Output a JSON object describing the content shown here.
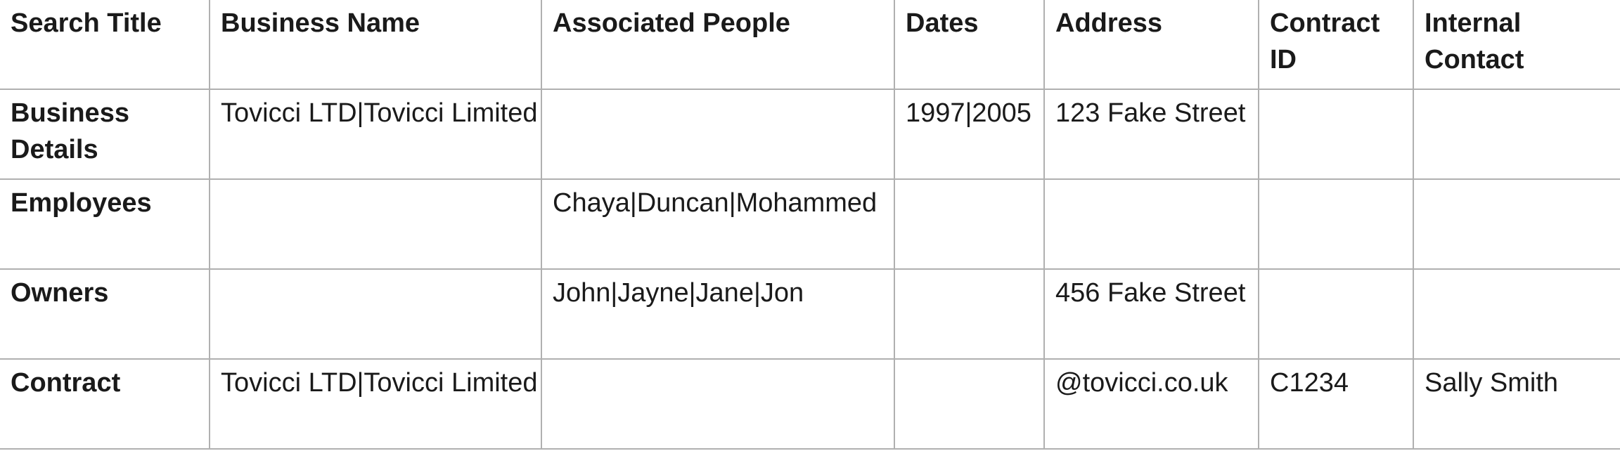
{
  "table": {
    "columns": [
      {
        "key": "search_title",
        "label": "Search Title"
      },
      {
        "key": "business_name",
        "label": "Business Name"
      },
      {
        "key": "associated_people",
        "label": "Associated People"
      },
      {
        "key": "dates",
        "label": "Dates"
      },
      {
        "key": "address",
        "label": "Address"
      },
      {
        "key": "contract_id",
        "label": "Contract ID"
      },
      {
        "key": "internal_contact",
        "label": "Internal Contact"
      }
    ],
    "rows": [
      {
        "search_title": "Business Details",
        "business_name": "Tovicci LTD|Tovicci Limited",
        "associated_people": "",
        "dates": "1997|2005",
        "address": "123 Fake Street",
        "contract_id": "",
        "internal_contact": ""
      },
      {
        "search_title": "Employees",
        "business_name": "",
        "associated_people": "Chaya|Duncan|Mohammed",
        "dates": "",
        "address": "",
        "contract_id": "",
        "internal_contact": ""
      },
      {
        "search_title": "Owners",
        "business_name": "",
        "associated_people": "John|Jayne|Jane|Jon",
        "dates": "",
        "address": "456 Fake Street",
        "contract_id": "",
        "internal_contact": ""
      },
      {
        "search_title": "Contract",
        "business_name": "Tovicci LTD|Tovicci Limited",
        "associated_people": "",
        "dates": "",
        "address": "@tovicci.co.uk",
        "contract_id": "C1234",
        "internal_contact": "Sally Smith"
      }
    ]
  },
  "colors": {
    "text": "#1a1a1a",
    "grid_border": "#b0b0b0",
    "background": "#ffffff"
  }
}
